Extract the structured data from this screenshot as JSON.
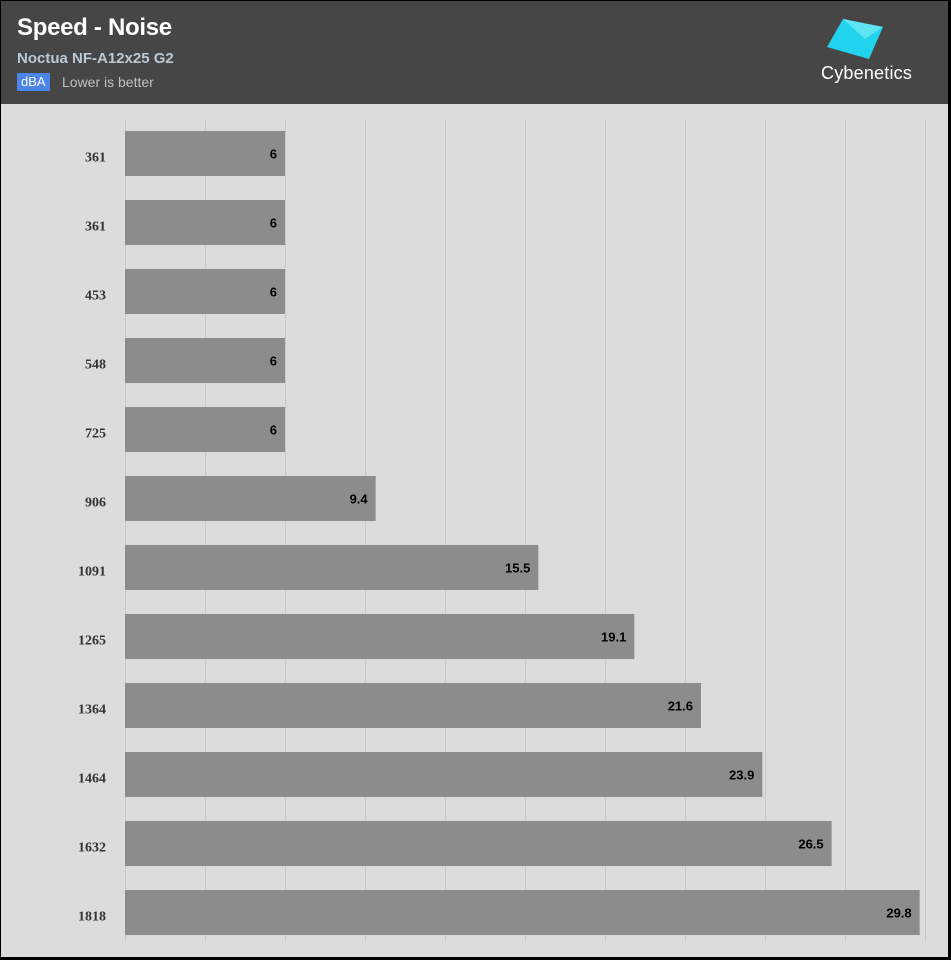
{
  "header": {
    "title": "Speed - Noise",
    "subtitle": "Noctua NF-A12x25 G2",
    "unit": "dBA",
    "note": "Lower is better",
    "logo_text": "Cybenetics",
    "logo_icon": "cybenetics-logo-icon",
    "logo_color": "#22d3ee"
  },
  "colors": {
    "header_bg": "#464646",
    "plot_bg": "#dcdcdc",
    "bar": "#8c8c8c",
    "grid": "#c8c8c8",
    "badge": "#4a86e8"
  },
  "chart_data": {
    "type": "bar",
    "orientation": "horizontal",
    "categories": [
      "361",
      "361",
      "453",
      "548",
      "725",
      "906",
      "1091",
      "1265",
      "1364",
      "1464",
      "1632",
      "1818"
    ],
    "values": [
      6,
      6,
      6,
      6,
      6,
      9.4,
      15.5,
      19.1,
      21.6,
      23.9,
      26.5,
      29.8
    ],
    "title": "Speed - Noise",
    "subtitle": "Noctua NF-A12x25 G2",
    "unit": "dBA",
    "xlim": [
      0,
      30
    ],
    "grid": true,
    "grid_step": 3
  }
}
